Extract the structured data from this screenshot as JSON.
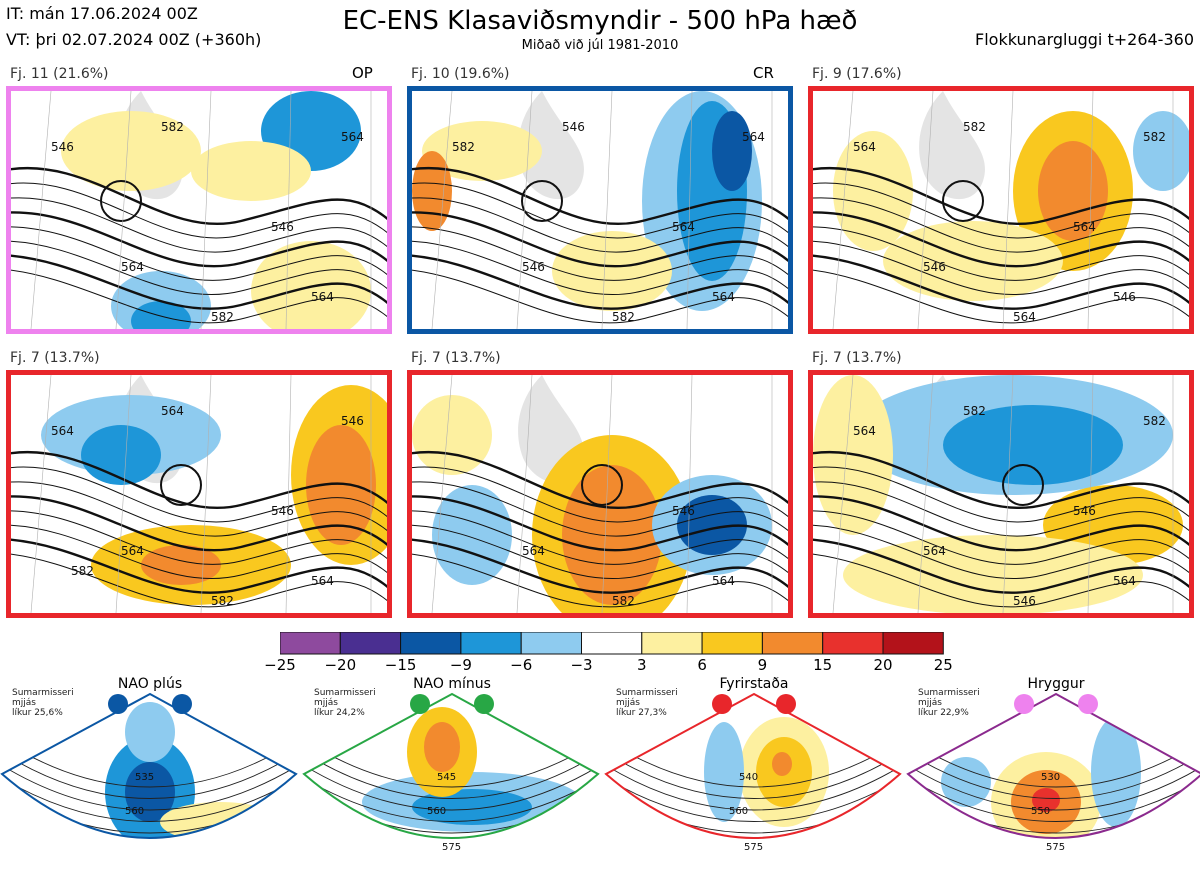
{
  "header": {
    "it": "IT: mán 17.06.2024 00Z",
    "vt": "VT: þri 02.07.2024 00Z  (+360h)",
    "title": "EC-ENS Klasaviðsmyndir - 500 hPa hæð",
    "subtitle": "Miðað við júl 1981-2010",
    "window": "Flokkunargluggi t+264-360"
  },
  "panels": [
    {
      "label": "Fj. 11 (21.6%)",
      "tag": "OP",
      "border": "#ee82ee",
      "contours": [
        "564",
        "546",
        "564",
        "582",
        "546",
        "564",
        "582"
      ]
    },
    {
      "label": "Fj. 10 (19.6%)",
      "tag": "CR",
      "border": "#0b57a4",
      "contours": [
        "546",
        "564",
        "564",
        "582",
        "582",
        "564",
        "546"
      ]
    },
    {
      "label": "Fj. 9 (17.6%)",
      "tag": "",
      "border": "#e8262b",
      "contours": [
        "546",
        "564",
        "546",
        "564",
        "564",
        "582",
        "582"
      ]
    },
    {
      "label": "Fj. 7 (13.7%)",
      "tag": "",
      "border": "#e8262b",
      "contours": [
        "564",
        "546",
        "564",
        "582",
        "564",
        "546",
        "564",
        "582"
      ]
    },
    {
      "label": "Fj. 7 (13.7%)",
      "tag": "",
      "border": "#e8262b",
      "contours": [
        "564",
        "546",
        "564",
        "582"
      ]
    },
    {
      "label": "Fj. 7 (13.7%)",
      "tag": "",
      "border": "#e8262b",
      "contours": [
        "564",
        "546",
        "564",
        "546",
        "564",
        "582",
        "582"
      ]
    }
  ],
  "colorbar": {
    "colors": [
      "#8e4a9e",
      "#4a2f91",
      "#0b57a4",
      "#1e96d8",
      "#8ecbef",
      "#ffffff",
      "#fdf0a0",
      "#f9c81f",
      "#f28a2e",
      "#e8312d",
      "#b3121a"
    ],
    "ticks": [
      "−25",
      "−20",
      "−15",
      "−9",
      "−6",
      "−3",
      "3",
      "6",
      "9",
      "15",
      "20",
      "25"
    ]
  },
  "regimes": [
    {
      "name": "NAO plús",
      "note": [
        "Sumarmisseri",
        "mjjás",
        "líkur 25,6%"
      ],
      "dot_color": "#0b57a4",
      "border": "#0b57a4",
      "contours": [
        "535",
        "560"
      ]
    },
    {
      "name": "NAO mínus",
      "note": [
        "Sumarmisseri",
        "mjjás",
        "líkur 24,2%"
      ],
      "dot_color": "#28a745",
      "border": "#28a745",
      "contours": [
        "545",
        "560",
        "575"
      ]
    },
    {
      "name": "Fyrirstaða",
      "note": [
        "Sumarmisseri",
        "mjjás",
        "líkur 27,3%"
      ],
      "dot_color": "#e8262b",
      "border": "#e8262b",
      "contours": [
        "540",
        "560",
        "575"
      ]
    },
    {
      "name": "Hryggur",
      "note": [
        "Sumarmisseri",
        "mjjás",
        "líkur 22,9%"
      ],
      "dot_color": "#ee82ee",
      "border": "#8b2a8e",
      "contours": [
        "530",
        "550",
        "575"
      ]
    }
  ]
}
